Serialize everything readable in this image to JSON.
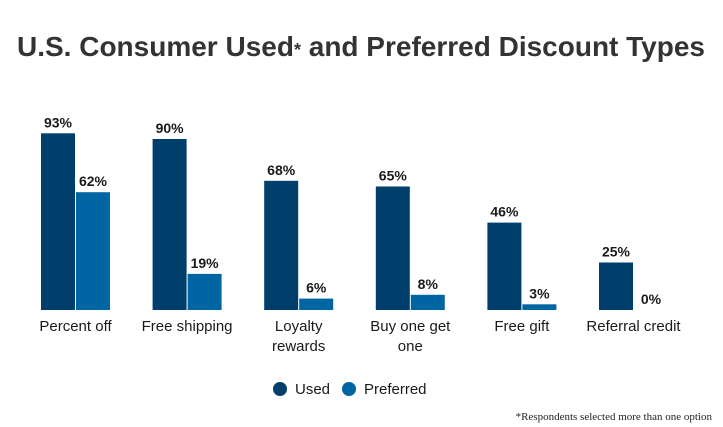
{
  "chart_data": {
    "type": "bar",
    "title": {
      "main": "U.S. Consumer Used",
      "star": "*",
      "rest": " and Preferred Discount Types"
    },
    "categories": [
      [
        "Percent off"
      ],
      [
        "Free shipping"
      ],
      [
        "Loyalty",
        "rewards"
      ],
      [
        "Buy one get",
        "one"
      ],
      [
        "Free gift"
      ],
      [
        "Referral credit"
      ]
    ],
    "series": [
      {
        "name": "Used",
        "color": "#003e6b",
        "values": [
          93,
          90,
          68,
          65,
          46,
          25
        ],
        "labels": [
          "93%",
          "90%",
          "68%",
          "65%",
          "46%",
          "25%"
        ]
      },
      {
        "name": "Preferred",
        "color": "#0065a3",
        "values": [
          62,
          19,
          6,
          8,
          3,
          0
        ],
        "labels": [
          "62%",
          "19%",
          "6%",
          "8%",
          "3%",
          "0%"
        ]
      }
    ],
    "ylim": [
      0,
      100
    ],
    "grid": false,
    "legend_position": "bottom-center",
    "footnote": "*Respondents selected more than one option"
  }
}
